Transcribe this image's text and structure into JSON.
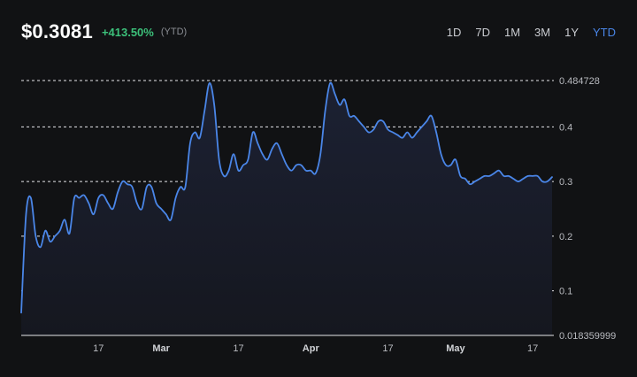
{
  "header": {
    "price": "$0.3081",
    "change": "+413.50%",
    "period": "(YTD)"
  },
  "ranges": [
    {
      "label": "1D",
      "active": false
    },
    {
      "label": "7D",
      "active": false
    },
    {
      "label": "1M",
      "active": false
    },
    {
      "label": "3M",
      "active": false
    },
    {
      "label": "1Y",
      "active": false
    },
    {
      "label": "YTD",
      "active": true
    }
  ],
  "colors": {
    "line": "#4a86e8",
    "positive": "#3cc07a",
    "accent": "#4a86e8"
  },
  "chart_data": {
    "type": "area",
    "grid": true,
    "grid_style": "dashed",
    "ylim": [
      0.018359999,
      0.484728
    ],
    "yticks": [
      0.484728,
      0.4,
      0.3,
      0.2,
      0.1,
      0.018359999
    ],
    "ytick_labels": [
      "0.484728",
      "0.4",
      "0.3",
      "0.2",
      "0.1",
      "0.018359999"
    ],
    "xlim": [
      "2024-02-01",
      "2024-05-21"
    ],
    "xticks": [
      {
        "date": "2024-02-17",
        "label": "17",
        "month": false
      },
      {
        "date": "2024-03-01",
        "label": "Mar",
        "month": true
      },
      {
        "date": "2024-03-17",
        "label": "17",
        "month": false
      },
      {
        "date": "2024-04-01",
        "label": "Apr",
        "month": true
      },
      {
        "date": "2024-04-17",
        "label": "17",
        "month": false
      },
      {
        "date": "2024-05-01",
        "label": "May",
        "month": true
      },
      {
        "date": "2024-05-17",
        "label": "17",
        "month": false
      }
    ],
    "x": [
      "2024-02-01",
      "2024-02-02",
      "2024-02-03",
      "2024-02-04",
      "2024-02-05",
      "2024-02-06",
      "2024-02-07",
      "2024-02-08",
      "2024-02-09",
      "2024-02-10",
      "2024-02-11",
      "2024-02-12",
      "2024-02-13",
      "2024-02-14",
      "2024-02-15",
      "2024-02-16",
      "2024-02-17",
      "2024-02-18",
      "2024-02-19",
      "2024-02-20",
      "2024-02-21",
      "2024-02-22",
      "2024-02-23",
      "2024-02-24",
      "2024-02-25",
      "2024-02-26",
      "2024-02-27",
      "2024-02-28",
      "2024-02-29",
      "2024-03-01",
      "2024-03-02",
      "2024-03-03",
      "2024-03-04",
      "2024-03-05",
      "2024-03-06",
      "2024-03-07",
      "2024-03-08",
      "2024-03-09",
      "2024-03-10",
      "2024-03-11",
      "2024-03-12",
      "2024-03-13",
      "2024-03-14",
      "2024-03-15",
      "2024-03-16",
      "2024-03-17",
      "2024-03-18",
      "2024-03-19",
      "2024-03-20",
      "2024-03-21",
      "2024-03-22",
      "2024-03-23",
      "2024-03-24",
      "2024-03-25",
      "2024-03-26",
      "2024-03-27",
      "2024-03-28",
      "2024-03-29",
      "2024-03-30",
      "2024-03-31",
      "2024-04-01",
      "2024-04-02",
      "2024-04-03",
      "2024-04-04",
      "2024-04-05",
      "2024-04-06",
      "2024-04-07",
      "2024-04-08",
      "2024-04-09",
      "2024-04-10",
      "2024-04-11",
      "2024-04-12",
      "2024-04-13",
      "2024-04-14",
      "2024-04-15",
      "2024-04-16",
      "2024-04-17",
      "2024-04-18",
      "2024-04-19",
      "2024-04-20",
      "2024-04-21",
      "2024-04-22",
      "2024-04-23",
      "2024-04-24",
      "2024-04-25",
      "2024-04-26",
      "2024-04-27",
      "2024-04-28",
      "2024-04-29",
      "2024-04-30",
      "2024-05-01",
      "2024-05-02",
      "2024-05-03",
      "2024-05-04",
      "2024-05-05",
      "2024-05-06",
      "2024-05-07",
      "2024-05-08",
      "2024-05-09",
      "2024-05-10",
      "2024-05-11",
      "2024-05-12",
      "2024-05-13",
      "2024-05-14",
      "2024-05-15",
      "2024-05-16",
      "2024-05-17",
      "2024-05-18",
      "2024-05-19",
      "2024-05-20",
      "2024-05-21"
    ],
    "series": [
      {
        "values": [
          0.06,
          0.24,
          0.27,
          0.2,
          0.18,
          0.21,
          0.19,
          0.2,
          0.21,
          0.23,
          0.205,
          0.27,
          0.27,
          0.275,
          0.26,
          0.24,
          0.27,
          0.275,
          0.26,
          0.25,
          0.28,
          0.3,
          0.295,
          0.29,
          0.26,
          0.25,
          0.29,
          0.29,
          0.26,
          0.25,
          0.24,
          0.23,
          0.27,
          0.29,
          0.29,
          0.37,
          0.39,
          0.38,
          0.43,
          0.48,
          0.44,
          0.34,
          0.31,
          0.32,
          0.35,
          0.32,
          0.33,
          0.34,
          0.39,
          0.37,
          0.35,
          0.34,
          0.36,
          0.37,
          0.35,
          0.33,
          0.32,
          0.33,
          0.33,
          0.32,
          0.32,
          0.315,
          0.35,
          0.43,
          0.48,
          0.46,
          0.44,
          0.45,
          0.42,
          0.42,
          0.41,
          0.4,
          0.39,
          0.395,
          0.41,
          0.41,
          0.395,
          0.39,
          0.385,
          0.38,
          0.39,
          0.38,
          0.39,
          0.4,
          0.41,
          0.42,
          0.39,
          0.35,
          0.33,
          0.33,
          0.34,
          0.31,
          0.305,
          0.295,
          0.3,
          0.305,
          0.31,
          0.31,
          0.315,
          0.32,
          0.31,
          0.31,
          0.305,
          0.3,
          0.305,
          0.31,
          0.31,
          0.31,
          0.3,
          0.3,
          0.3081
        ]
      }
    ]
  }
}
